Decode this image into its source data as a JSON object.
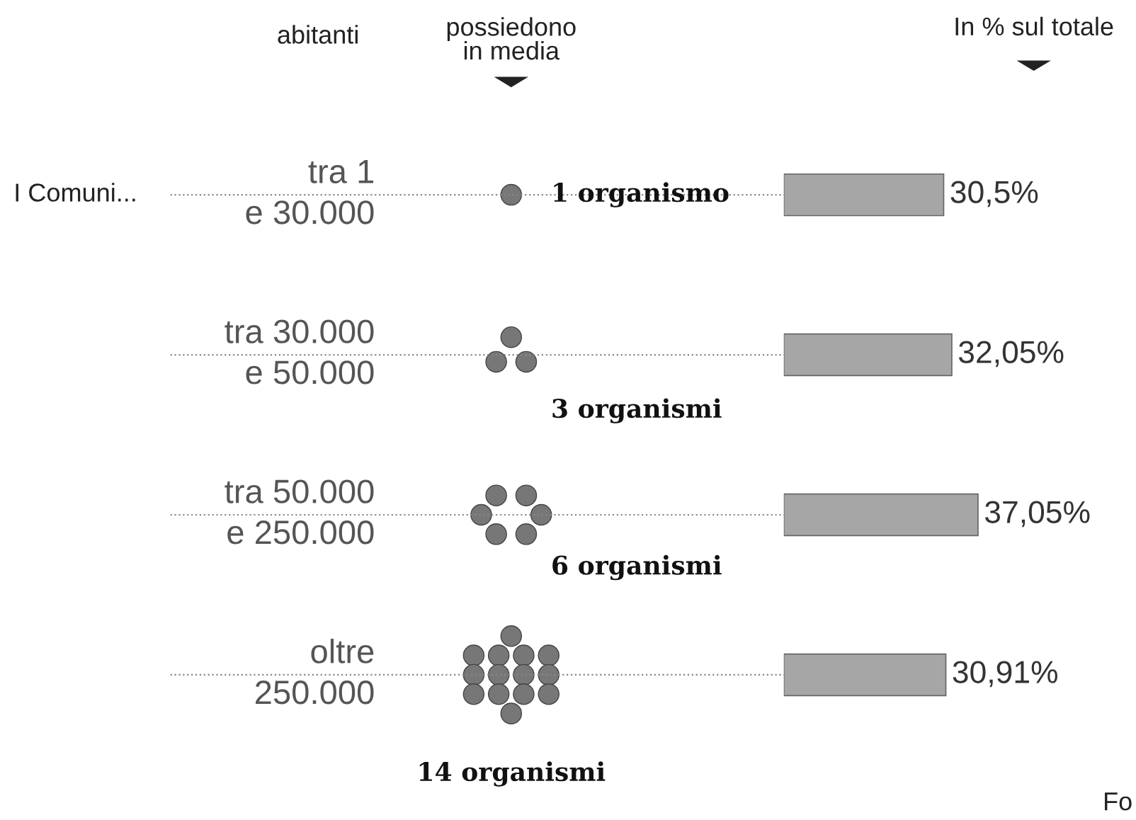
{
  "chart_data": {
    "type": "bar",
    "orientation": "horizontal",
    "categories": [
      "tra 1\ne 30.000",
      "tra 30.000\ne 50.000",
      "tra 50.000\ne 250.000",
      "oltre\n250.000"
    ],
    "values": [
      30.5,
      32.05,
      37.05,
      30.91
    ],
    "value_labels": [
      "30,5%",
      "32,05%",
      "37,05%",
      "30,91%"
    ],
    "color": "#a6a6a6",
    "annotations": [
      "I Comuni...",
      "abitanti",
      "possiedono\nin media",
      "In % sul totale",
      "1 organismo",
      "3 organismi",
      "6 organismi",
      "14 organismi",
      "Fo"
    ]
  }
}
